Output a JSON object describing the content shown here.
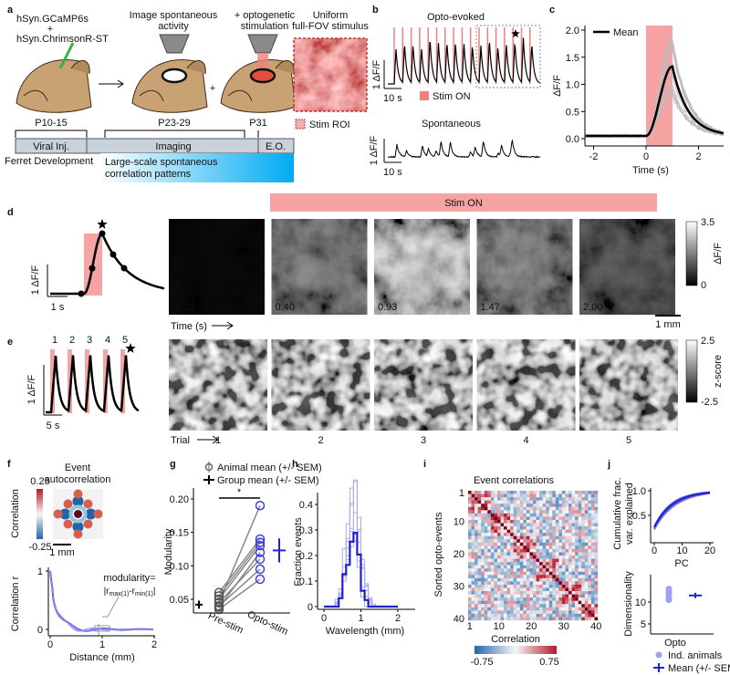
{
  "a": {
    "label": "a",
    "construct_1": "hSyn.GCaMP6s",
    "plus_1": "+",
    "construct_2": "hSyn.ChrimsonR-ST",
    "imaging": [
      "Image spontaneous",
      "activity"
    ],
    "plus_2": "+",
    "stimulation": [
      "+ optogenetic",
      "stimulation"
    ],
    "stimulus": [
      "Uniform",
      "full-FOV stimulus"
    ],
    "roi_legend": "Stim ROI",
    "ages": [
      "P10-15",
      "P23-29",
      "P31"
    ],
    "phases": [
      "Viral Inj.",
      "Imaging",
      "E.O."
    ],
    "timeline_label": "Ferret Development",
    "window": [
      "Large-scale spontaneous",
      "correlation patterns"
    ]
  },
  "b": {
    "label": "b",
    "evoked_title": "Opto-evoked",
    "evoked_scale_y": "1 ΔF/F",
    "evoked_scale_x": "10 s",
    "stim_legend": "Stim ON",
    "spont_title": "Spontaneous",
    "spont_scale_y": "1 ΔF/F",
    "spont_scale_x": "10 s"
  },
  "c": {
    "label": "c",
    "legend": "Mean",
    "y_label": "ΔF/F",
    "x_label": "Time (s)",
    "yticks": [
      "0.0",
      "0.5",
      "1.0",
      "1.5",
      "2.0"
    ],
    "xticks": [
      "-2",
      "0",
      "2"
    ]
  },
  "d": {
    "label": "d",
    "stim_bar": "Stim ON",
    "scale_y": "1 ΔF/F",
    "scale_x": "1 s",
    "frames": [
      "-0.13",
      "0.40",
      "0.93",
      "1.47",
      "2.00"
    ],
    "time_label": "Time (s)",
    "colorbar_ticks": [
      "3.5",
      "0"
    ],
    "colorbar_label": "ΔF/F",
    "scale_bar": "1 mm"
  },
  "e": {
    "label": "e",
    "event_numbers": [
      "1",
      "2",
      "3",
      "4",
      "5"
    ],
    "scale_y": "1 ΔF/F",
    "scale_x": "5 s",
    "trial_label": "Trial",
    "trials": [
      "1",
      "2",
      "3",
      "4",
      "5"
    ],
    "colorbar_ticks": [
      "2.5",
      "-2.5"
    ],
    "colorbar_label": "z-score"
  },
  "f": {
    "label": "f",
    "title": [
      "Event",
      "autocorrelation"
    ],
    "colorbar_ticks": [
      "0.25",
      "-0.25"
    ],
    "colorbar_label": "Correlation",
    "scale_bar": "1 mm",
    "y_label": "Correlation r",
    "yticks": [
      "1",
      "0"
    ],
    "xticks": [
      "0",
      "1",
      "2"
    ],
    "x_label": "Distance (mm)",
    "formula_head": "modularity=",
    "formula": [
      "|r",
      "max(1)",
      "-r",
      "min(1)",
      "|"
    ]
  },
  "g": {
    "label": "g",
    "legend": [
      "Animal mean (+/- SEM)",
      "Group mean (+/- SEM)"
    ],
    "significance": "*",
    "y_label": "Modularity",
    "yticks": [
      "0.05",
      "0.10",
      "0.15",
      "0.20"
    ],
    "categories": [
      "Pre-stim",
      "Opto-stim"
    ]
  },
  "h": {
    "label": "h",
    "y_label": "Fraction events",
    "yticks": [
      "0",
      "0.1",
      "0.2",
      "0.3",
      "0.4"
    ],
    "xticks": [
      "0",
      "1",
      "2"
    ],
    "x_label": "Wavelength (mm)"
  },
  "i": {
    "label": "i",
    "title": "Event correlations",
    "y_label": "Sorted opto-events",
    "yticks": [
      "1",
      "10",
      "20",
      "30",
      "40"
    ],
    "xticks": [
      "1",
      "10",
      "20",
      "30",
      "40"
    ],
    "colorbar_label": "Correlation",
    "colorbar_ticks": [
      "-0.75",
      "0.75"
    ]
  },
  "j": {
    "label": "j",
    "top_y_label": [
      "Cumulative frac.",
      "var. explained"
    ],
    "top_yticks": [
      "0.5",
      "1.0"
    ],
    "top_xticks": [
      "0",
      "10",
      "20"
    ],
    "top_x_label": "PC",
    "bottom_y_label": "Dimensionality",
    "bottom_yticks": [
      "5",
      "10"
    ],
    "bottom_category": "Opto",
    "legend": [
      "Ind. animals",
      "Mean (+/- SEM)"
    ]
  }
}
